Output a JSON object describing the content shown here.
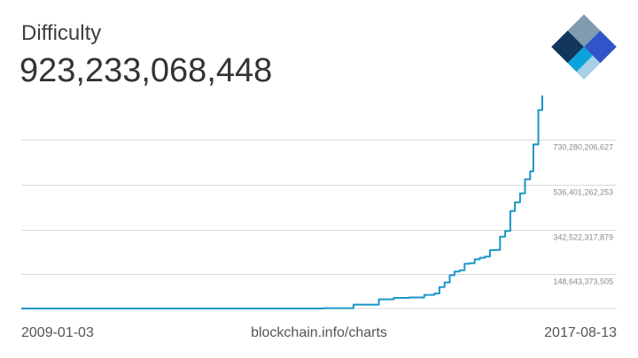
{
  "header": {
    "title": "Difficulty",
    "current_value": "923,233,068,448"
  },
  "footer": {
    "start_date": "2009-01-03",
    "source": "blockchain.info/charts",
    "end_date": "2017-08-13"
  },
  "logo": {
    "icon": "blockchain-diamond-logo",
    "colors": [
      "#12365c",
      "#7f9bb0",
      "#2f55c8",
      "#0aa4dd",
      "#a7cfe6"
    ]
  },
  "colors": {
    "line": "#1b96c8",
    "grid": "#d9d9d9",
    "tick_text": "#8a8a8a"
  },
  "chart_data": {
    "type": "line",
    "title": "Difficulty",
    "xlabel": "",
    "ylabel": "",
    "xlim": [
      "2009-01-03",
      "2017-08-13"
    ],
    "ylim": [
      0,
      923233068448
    ],
    "grid": true,
    "y_ticks": [
      {
        "value": 148643373505,
        "label": "148,643,373,505"
      },
      {
        "value": 342522317879,
        "label": "342,522,317,879"
      },
      {
        "value": 536401262253,
        "label": "536,401,262,253"
      },
      {
        "value": 730280206627,
        "label": "730,280,206,627"
      }
    ],
    "series": [
      {
        "values": [
          [
            "2009-01-03",
            1
          ],
          [
            "2011-01-01",
            15000
          ],
          [
            "2013-01-01",
            3250000
          ],
          [
            "2014-01-01",
            1400000000
          ],
          [
            "2014-07-01",
            17000000000
          ],
          [
            "2014-12-01",
            40000000000
          ],
          [
            "2015-03-01",
            46000000000
          ],
          [
            "2015-06-01",
            48000000000
          ],
          [
            "2015-09-01",
            59000000000
          ],
          [
            "2015-11-01",
            65000000000
          ],
          [
            "2015-12-01",
            93000000000
          ],
          [
            "2016-01-01",
            113000000000
          ],
          [
            "2016-02-01",
            144000000000
          ],
          [
            "2016-03-01",
            160000000000
          ],
          [
            "2016-04-01",
            166000000000
          ],
          [
            "2016-05-01",
            194000000000
          ],
          [
            "2016-06-01",
            196000000000
          ],
          [
            "2016-07-01",
            213000000000
          ],
          [
            "2016-08-01",
            220000000000
          ],
          [
            "2016-09-01",
            225000000000
          ],
          [
            "2016-10-01",
            253000000000
          ],
          [
            "2016-11-01",
            254000000000
          ],
          [
            "2016-12-01",
            311000000000
          ],
          [
            "2017-01-01",
            336000000000
          ],
          [
            "2017-02-01",
            422000000000
          ],
          [
            "2017-03-01",
            460000000000
          ],
          [
            "2017-04-01",
            499000000000
          ],
          [
            "2017-05-01",
            560000000000
          ],
          [
            "2017-06-01",
            595000000000
          ],
          [
            "2017-06-20",
            711000000000
          ],
          [
            "2017-07-10",
            711000000000
          ],
          [
            "2017-07-20",
            860000000000
          ],
          [
            "2017-08-13",
            923233068448
          ]
        ]
      }
    ]
  }
}
